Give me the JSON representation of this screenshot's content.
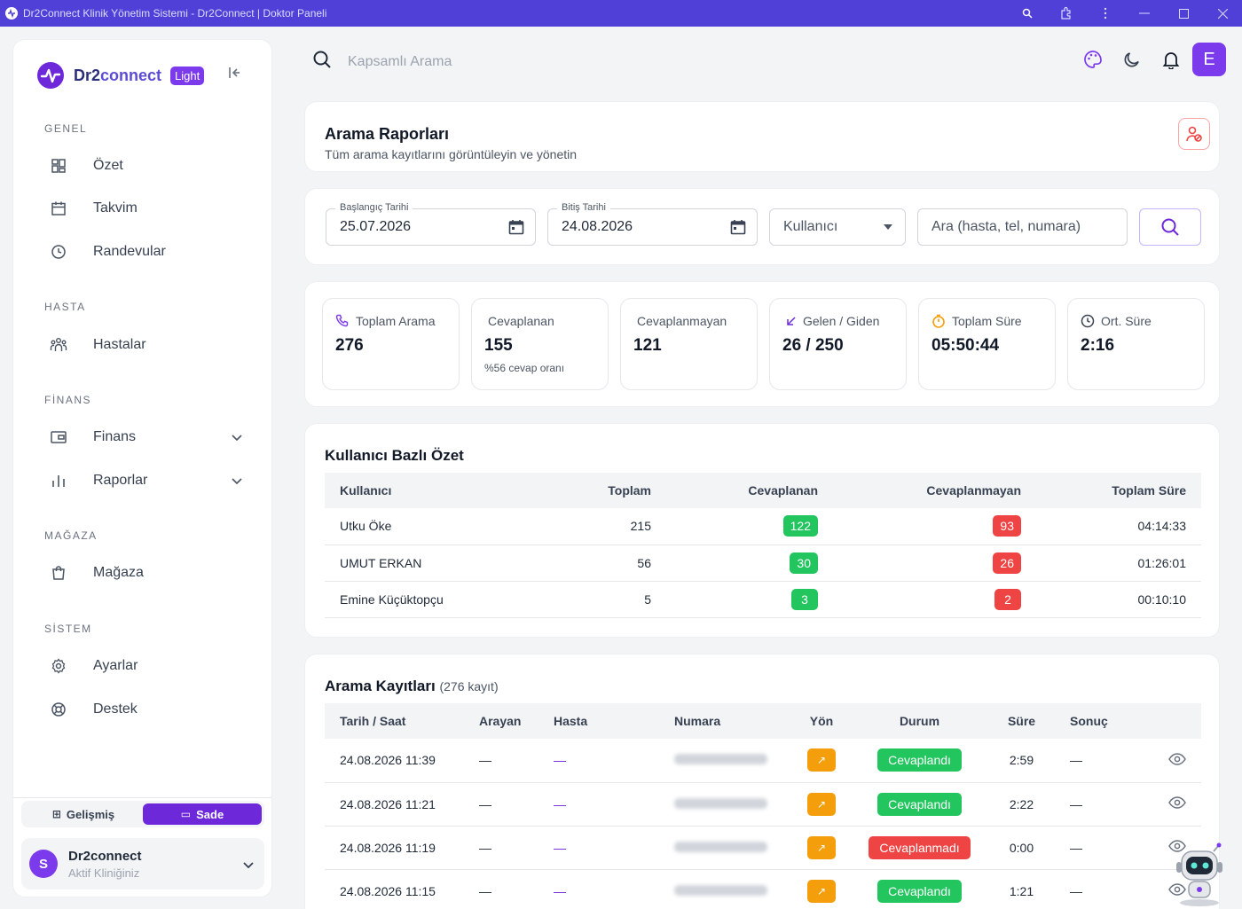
{
  "window": {
    "title": "Dr2Connect Klinik Yönetim Sistemi - Dr2Connect | Doktor Paneli"
  },
  "sidebar": {
    "brand": {
      "name_prefix": "Dr2",
      "name_suffix": "connect",
      "badge": "Light"
    },
    "sections": [
      {
        "title": "GENEL",
        "items": [
          {
            "label": "Özet",
            "icon": "grid-icon"
          },
          {
            "label": "Takvim",
            "icon": "calendar-icon"
          },
          {
            "label": "Randevular",
            "icon": "clock-icon"
          }
        ]
      },
      {
        "title": "HASTA",
        "items": [
          {
            "label": "Hastalar",
            "icon": "users-icon"
          }
        ]
      },
      {
        "title": "FİNANS",
        "items": [
          {
            "label": "Finans",
            "icon": "wallet-icon"
          },
          {
            "label": "Raporlar",
            "icon": "bar-chart-icon"
          }
        ]
      },
      {
        "title": "MAĞAZA",
        "items": [
          {
            "label": "Mağaza",
            "icon": "shopping-bag-icon"
          }
        ]
      },
      {
        "title": "SİSTEM",
        "items": [
          {
            "label": "Ayarlar",
            "icon": "gear-icon"
          },
          {
            "label": "Destek",
            "icon": "lifebuoy-icon"
          }
        ]
      }
    ],
    "mode": {
      "advanced": "Gelişmiş",
      "simple": "Sade",
      "active": "simple"
    },
    "clinic": {
      "avatar": "S",
      "name": "Dr2connect",
      "status": "Aktif Kliniğiniz"
    }
  },
  "topbar": {
    "search_placeholder": "Kapsamlı Arama",
    "user_initial": "E"
  },
  "header": {
    "title": "Arama Raporları",
    "subtitle": "Tüm arama kayıtlarını görüntüleyin ve yönetin"
  },
  "filters": {
    "start_label": "Başlangıç Tarihi",
    "start_value": "25.07.2026",
    "end_label": "Bitiş Tarihi",
    "end_value": "24.08.2026",
    "user_placeholder": "Kullanıcı",
    "search_placeholder": "Ara (hasta, tel, numara)"
  },
  "stats": {
    "total": {
      "label": "Toplam Arama",
      "value": "276"
    },
    "answered": {
      "label": "Cevaplanan",
      "value": "155",
      "sub": "%56 cevap oranı"
    },
    "missed": {
      "label": "Cevaplanmayan",
      "value": "121"
    },
    "inout": {
      "label": "Gelen / Giden",
      "value": "26 / 250"
    },
    "duration": {
      "label": "Toplam Süre",
      "value": "05:50:44"
    },
    "avg": {
      "label": "Ort. Süre",
      "value": "2:16"
    }
  },
  "user_summary": {
    "title": "Kullanıcı Bazlı Özet",
    "columns": [
      "Kullanıcı",
      "Toplam",
      "Cevaplanan",
      "Cevaplanmayan",
      "Toplam Süre"
    ],
    "rows": [
      {
        "user": "Utku Öke",
        "total": "215",
        "answered": "122",
        "missed": "93",
        "duration": "04:14:33"
      },
      {
        "user": "UMUT ERKAN",
        "total": "56",
        "answered": "30",
        "missed": "26",
        "duration": "01:26:01"
      },
      {
        "user": "Emine Küçüktopçu",
        "total": "5",
        "answered": "3",
        "missed": "2",
        "duration": "00:10:10"
      }
    ]
  },
  "records": {
    "title": "Arama Kayıtları",
    "count": "(276 kayıt)",
    "columns": [
      "Tarih / Saat",
      "Arayan",
      "Hasta",
      "Numara",
      "Yön",
      "Durum",
      "Süre",
      "Sonuç"
    ],
    "rows": [
      {
        "datetime": "24.08.2026 11:39",
        "caller": "—",
        "patient": "—",
        "direction": "↗",
        "status": "Cevaplandı",
        "status_color": "#22c55e",
        "duration": "2:59",
        "result": "—"
      },
      {
        "datetime": "24.08.2026 11:21",
        "caller": "—",
        "patient": "—",
        "direction": "↗",
        "status": "Cevaplandı",
        "status_color": "#22c55e",
        "duration": "2:22",
        "result": "—"
      },
      {
        "datetime": "24.08.2026 11:19",
        "caller": "—",
        "patient": "—",
        "direction": "↗",
        "status": "Cevaplanmadı",
        "status_color": "#ef4444",
        "duration": "0:00",
        "result": "—"
      },
      {
        "datetime": "24.08.2026 11:15",
        "caller": "—",
        "patient": "—",
        "direction": "↗",
        "status": "Cevaplandı",
        "status_color": "#22c55e",
        "duration": "1:21",
        "result": "—"
      }
    ]
  },
  "colors": {
    "accent": "#7c3aed",
    "titlebar": "#5040d8",
    "success": "#22c55e",
    "danger": "#ef4444",
    "warning": "#f59e0b"
  }
}
